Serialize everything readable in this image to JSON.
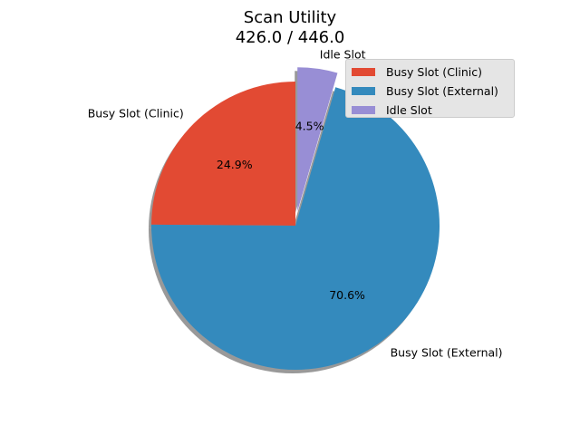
{
  "chart_data": {
    "type": "pie",
    "title": "Scan Utility",
    "subtitle": "426.0 / 446.0",
    "labels": [
      "Busy Slot (Clinic)",
      "Busy Slot (External)",
      "Idle Slot"
    ],
    "values": [
      111,
      315,
      20
    ],
    "percent_labels": [
      "24.9%",
      "70.6%",
      "4.5%"
    ],
    "colors": [
      "#e24a33",
      "#348abd",
      "#988ed5"
    ],
    "explode": [
      0,
      0,
      0.1
    ],
    "start_angle": 90,
    "shadow": true,
    "legend": {
      "placement": "upper right",
      "entries": [
        "Busy Slot (Clinic)",
        "Busy Slot (External)",
        "Idle Slot"
      ]
    }
  }
}
